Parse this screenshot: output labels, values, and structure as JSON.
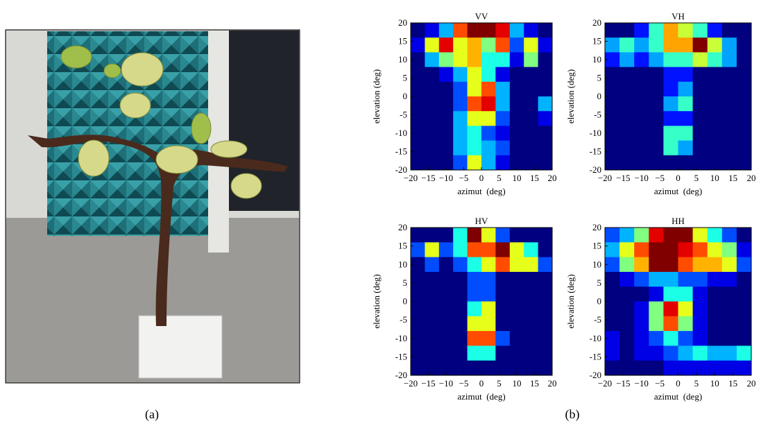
{
  "figure": {
    "captions": [
      "(a)",
      "(b)"
    ]
  },
  "chart_data": [
    {
      "type": "heatmap",
      "title": "VV",
      "xlabel": "azimut  (deg)",
      "ylabel": "elevation (deg)",
      "xlim": [
        -20,
        20
      ],
      "ylim": [
        -20,
        20
      ],
      "xticks": [
        {
          "value": -20,
          "label": "−20"
        },
        {
          "value": -15,
          "label": "−15"
        },
        {
          "value": -10,
          "label": "−10"
        },
        {
          "value": -5,
          "label": "−5"
        },
        0,
        5,
        10,
        15,
        20
      ],
      "yticks": [
        -20,
        -15,
        -10,
        -5,
        0,
        5,
        10,
        15,
        20
      ],
      "values": [
        [
          0,
          1,
          3,
          8,
          10,
          10,
          9,
          3,
          1,
          0
        ],
        [
          1,
          6,
          9,
          6,
          7,
          5,
          8,
          2,
          6,
          1
        ],
        [
          0,
          3,
          5,
          6,
          7,
          4,
          4,
          1,
          5,
          0
        ],
        [
          0,
          0,
          1,
          3,
          6,
          4,
          1,
          0,
          0,
          0
        ],
        [
          0,
          0,
          0,
          2,
          6,
          8,
          3,
          0,
          0,
          0
        ],
        [
          0,
          0,
          0,
          2,
          8,
          9,
          3,
          0,
          0,
          3
        ],
        [
          0,
          0,
          0,
          3,
          6,
          6,
          2,
          0,
          0,
          1
        ],
        [
          0,
          0,
          0,
          3,
          4,
          2,
          1,
          0,
          0,
          0
        ],
        [
          0,
          0,
          0,
          3,
          4,
          3,
          2,
          0,
          0,
          0
        ],
        [
          0,
          0,
          0,
          2,
          6,
          3,
          1,
          0,
          0,
          0
        ]
      ]
    },
    {
      "type": "heatmap",
      "title": "VH",
      "xlabel": "azimut  (deg)",
      "ylabel": "elevation (deg)",
      "xlim": [
        -20,
        20
      ],
      "ylim": [
        -20,
        20
      ],
      "xticks": [
        {
          "value": -20,
          "label": "−20"
        },
        {
          "value": -15,
          "label": "−15"
        },
        {
          "value": -10,
          "label": "−10"
        },
        {
          "value": -5,
          "label": "−5"
        },
        0,
        5,
        10,
        15,
        20
      ],
      "yticks": [
        -20,
        -15,
        -10,
        -5,
        0,
        5,
        10,
        15,
        20
      ],
      "values": [
        [
          0,
          0,
          1,
          3,
          5,
          4,
          3,
          1,
          0,
          0
        ],
        [
          2,
          3,
          2,
          3,
          5,
          5,
          7,
          4,
          2,
          0
        ],
        [
          1,
          2,
          1,
          2,
          3,
          3,
          4,
          3,
          2,
          0
        ],
        [
          0,
          0,
          0,
          0,
          1,
          1,
          0,
          0,
          0,
          0
        ],
        [
          0,
          0,
          0,
          0,
          1,
          2,
          0,
          0,
          0,
          0
        ],
        [
          0,
          0,
          0,
          0,
          2,
          3,
          0,
          0,
          0,
          0
        ],
        [
          0,
          0,
          0,
          0,
          1,
          1,
          0,
          0,
          0,
          0
        ],
        [
          0,
          0,
          0,
          0,
          3,
          3,
          0,
          0,
          0,
          0
        ],
        [
          0,
          0,
          0,
          0,
          3,
          2,
          0,
          0,
          0,
          0
        ],
        [
          0,
          0,
          0,
          0,
          0,
          0,
          0,
          0,
          0,
          0
        ]
      ]
    },
    {
      "type": "heatmap",
      "title": "HV",
      "xlabel": "azimut  (deg)",
      "ylabel": "elevation (deg)",
      "xlim": [
        -20,
        20
      ],
      "ylim": [
        -20,
        20
      ],
      "xticks": [
        {
          "value": -20,
          "label": "−20"
        },
        {
          "value": -15,
          "label": "−15"
        },
        {
          "value": -10,
          "label": "−10"
        },
        {
          "value": -5,
          "label": "−5"
        },
        0,
        5,
        10,
        15,
        20
      ],
      "yticks": [
        -20,
        -15,
        -10,
        -5,
        0,
        5,
        10,
        15,
        20
      ],
      "values": [
        [
          0,
          0,
          0,
          2,
          5,
          3,
          1,
          0,
          0,
          0
        ],
        [
          1,
          3,
          1,
          2,
          4,
          4,
          5,
          3,
          2,
          0
        ],
        [
          0,
          1,
          0,
          1,
          2,
          3,
          4,
          3,
          3,
          1
        ],
        [
          0,
          0,
          0,
          0,
          1,
          1,
          0,
          0,
          0,
          0
        ],
        [
          0,
          0,
          0,
          0,
          1,
          1,
          0,
          0,
          0,
          0
        ],
        [
          0,
          0,
          0,
          0,
          2,
          3,
          0,
          0,
          0,
          0
        ],
        [
          0,
          0,
          0,
          0,
          3,
          3,
          0,
          0,
          0,
          0
        ],
        [
          0,
          0,
          0,
          0,
          4,
          4,
          1,
          0,
          0,
          0
        ],
        [
          0,
          0,
          0,
          0,
          2,
          2,
          0,
          0,
          0,
          0
        ],
        [
          0,
          0,
          0,
          0,
          0,
          0,
          0,
          0,
          0,
          0
        ]
      ]
    },
    {
      "type": "heatmap",
      "title": "HH",
      "xlabel": "azimut  (deg)",
      "ylabel": "elevation (deg)",
      "xlim": [
        -20,
        20
      ],
      "ylim": [
        -20,
        20
      ],
      "xticks": [
        {
          "value": -20,
          "label": "−20"
        },
        {
          "value": -15,
          "label": "−15"
        },
        {
          "value": -10,
          "label": "−10"
        },
        {
          "value": -5,
          "label": "−5"
        },
        0,
        5,
        10,
        15,
        20
      ],
      "yticks": [
        -20,
        -15,
        -10,
        -5,
        0,
        5,
        10,
        15,
        20
      ],
      "values": [
        [
          2,
          3,
          5,
          9,
          10,
          10,
          6,
          4,
          2,
          0
        ],
        [
          3,
          6,
          8,
          10,
          10,
          9,
          8,
          6,
          5,
          1
        ],
        [
          2,
          5,
          7,
          10,
          10,
          8,
          7,
          7,
          6,
          2
        ],
        [
          0,
          1,
          2,
          3,
          3,
          2,
          2,
          1,
          1,
          0
        ],
        [
          0,
          0,
          0,
          1,
          4,
          4,
          1,
          0,
          0,
          0
        ],
        [
          0,
          0,
          1,
          5,
          9,
          6,
          1,
          0,
          0,
          0
        ],
        [
          0,
          0,
          1,
          5,
          8,
          5,
          1,
          0,
          0,
          0
        ],
        [
          1,
          0,
          1,
          2,
          4,
          2,
          1,
          0,
          0,
          0
        ],
        [
          1,
          0,
          1,
          1,
          2,
          3,
          4,
          3,
          3,
          4
        ],
        [
          0,
          0,
          0,
          0,
          1,
          1,
          1,
          1,
          1,
          1
        ]
      ]
    }
  ]
}
